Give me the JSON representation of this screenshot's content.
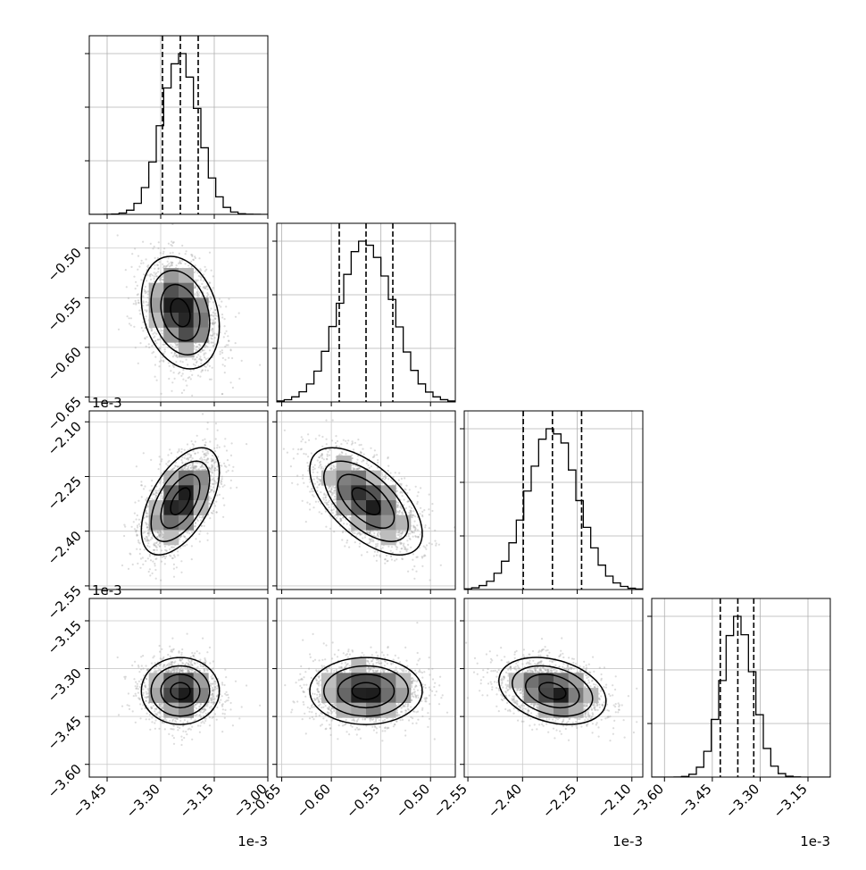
{
  "chart_data": {
    "type": "corner",
    "title": "",
    "parameters": [
      {
        "range": [
          -3.5,
          -3.0
        ],
        "ticks": [
          -3.45,
          -3.3,
          -3.15,
          -3.0
        ],
        "tick_labels": [
          "−3.45",
          "−3.30",
          "−3.15",
          "−3.00"
        ],
        "multiplier": "1e-3",
        "mean": -3.245,
        "sigma": 0.052,
        "quantiles": [
          -3.295,
          -3.245,
          -3.195
        ]
      },
      {
        "range": [
          -0.655,
          -0.475
        ],
        "ticks": [
          -0.65,
          -0.6,
          -0.55,
          -0.5
        ],
        "tick_labels": [
          "−0.65",
          "−0.60",
          "−0.55",
          "−0.50"
        ],
        "multiplier": "1e-3",
        "mean": -0.565,
        "sigma": 0.027,
        "quantiles": [
          -0.592,
          -0.565,
          -0.538
        ]
      },
      {
        "range": [
          -2.56,
          -2.07
        ],
        "ticks": [
          -2.55,
          -2.4,
          -2.25,
          -2.1
        ],
        "tick_labels": [
          "−2.55",
          "−2.40",
          "−2.25",
          "−2.10"
        ],
        "multiplier": "1e-3",
        "mean": -2.318,
        "sigma": 0.07,
        "quantiles": [
          -2.398,
          -2.318,
          -2.238
        ]
      },
      {
        "range": [
          -3.64,
          -3.08
        ],
        "ticks": [
          -3.6,
          -3.45,
          -3.3,
          -3.15
        ],
        "tick_labels": [
          "−3.60",
          "−3.45",
          "−3.30",
          "−3.15"
        ],
        "multiplier": "1e-3",
        "mean": -3.37,
        "sigma": 0.05,
        "quantiles": [
          -3.425,
          -3.37,
          -3.32
        ]
      }
    ],
    "correlations": {
      "1-0": -0.25,
      "2-0": 0.55,
      "2-1": -0.6,
      "3-0": 0.0,
      "3-1": 0.0,
      "3-2": -0.3
    },
    "grid": true,
    "quantile_lines": "dashed",
    "contour_levels": 4
  }
}
